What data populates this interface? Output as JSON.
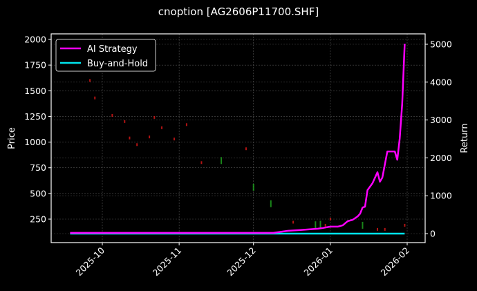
{
  "chart_data": {
    "type": "line",
    "title": "cnoption [AG2606P11700.SHF]",
    "xlabel": "",
    "ylabel": "Price",
    "y2label": "Return",
    "x_ticks": [
      "2025-10",
      "2025-11",
      "2025-12",
      "2026-01",
      "2026-02"
    ],
    "y_ticks": [
      250,
      500,
      750,
      1000,
      1250,
      1500,
      1750,
      2000
    ],
    "y2_ticks": [
      0,
      1000,
      2000,
      3000,
      4000,
      5000
    ],
    "ylim": [
      22,
      2035
    ],
    "y2lim": [
      -240,
      5240
    ],
    "grid": true,
    "legend": {
      "position": "upper left",
      "entries": [
        {
          "label": "AI Strategy",
          "color": "#ff00ff"
        },
        {
          "label": "Buy-and-Hold",
          "color": "#00e5ee"
        }
      ]
    },
    "series": [
      {
        "name": "AI Strategy",
        "axis": "right",
        "color": "#ff00ff",
        "x": [
          "2025-09-18",
          "2025-12-09",
          "2025-12-15",
          "2025-12-20",
          "2025-12-27",
          "2025-12-29",
          "2026-01-01",
          "2026-01-04",
          "2026-01-06",
          "2026-01-08",
          "2026-01-10",
          "2026-01-12",
          "2026-01-13",
          "2026-01-14",
          "2026-01-15",
          "2026-01-16",
          "2026-01-18",
          "2026-01-20",
          "2026-01-21",
          "2026-01-22",
          "2026-01-24",
          "2026-01-26",
          "2026-01-27",
          "2026-01-28",
          "2026-01-29",
          "2026-01-30",
          "2026-01-31"
        ],
        "values": [
          20,
          20,
          75,
          95,
          130,
          150,
          185,
          185,
          220,
          330,
          365,
          455,
          525,
          690,
          710,
          1150,
          1330,
          1620,
          1370,
          1480,
          2170,
          2170,
          2170,
          1950,
          2510,
          3430,
          5010
        ]
      },
      {
        "name": "Buy-and-Hold",
        "axis": "right",
        "color": "#00e5ee",
        "x": [
          "2025-09-18",
          "2026-01-31"
        ],
        "values": [
          0,
          0
        ]
      }
    ],
    "candles_note": "faint OHLC candlesticks on left axis (Price), declining from ~1600 in late Sep 2025 to ~150-250 by Jan 2026",
    "candles": [
      {
        "x": "2025-09-26",
        "price": 1600,
        "color": "red"
      },
      {
        "x": "2025-09-28",
        "price": 1430,
        "color": "red"
      },
      {
        "x": "2025-10-05",
        "price": 1260,
        "color": "red"
      },
      {
        "x": "2025-10-10",
        "price": 1200,
        "color": "red"
      },
      {
        "x": "2025-10-12",
        "price": 1040,
        "color": "red"
      },
      {
        "x": "2025-10-15",
        "price": 975,
        "color": "red"
      },
      {
        "x": "2025-10-20",
        "price": 1050,
        "color": "red"
      },
      {
        "x": "2025-10-22",
        "price": 1240,
        "color": "red"
      },
      {
        "x": "2025-10-25",
        "price": 1140,
        "color": "red"
      },
      {
        "x": "2025-10-30",
        "price": 1030,
        "color": "red"
      },
      {
        "x": "2025-11-04",
        "price": 1170,
        "color": "red"
      },
      {
        "x": "2025-11-10",
        "price": 800,
        "color": "red"
      },
      {
        "x": "2025-11-18",
        "price": 820,
        "color": "green"
      },
      {
        "x": "2025-11-28",
        "price": 935,
        "color": "red"
      },
      {
        "x": "2025-12-01",
        "price": 560,
        "color": "green"
      },
      {
        "x": "2025-12-08",
        "price": 400,
        "color": "green"
      },
      {
        "x": "2025-12-17",
        "price": 220,
        "color": "red"
      },
      {
        "x": "2025-12-26",
        "price": 195,
        "color": "green"
      },
      {
        "x": "2025-12-28",
        "price": 200,
        "color": "green"
      },
      {
        "x": "2025-12-30",
        "price": 190,
        "color": "red"
      },
      {
        "x": "2026-01-01",
        "price": 250,
        "color": "red"
      },
      {
        "x": "2026-01-14",
        "price": 190,
        "color": "green"
      },
      {
        "x": "2026-01-20",
        "price": 150,
        "color": "red"
      },
      {
        "x": "2026-01-23",
        "price": 150,
        "color": "red"
      },
      {
        "x": "2026-01-31",
        "price": 190,
        "color": "red"
      }
    ]
  },
  "labels": {
    "title": "cnoption [AG2606P11700.SHF]",
    "ylabel": "Price",
    "y2label": "Return",
    "legend_ai": "AI Strategy",
    "legend_bh": "Buy-and-Hold"
  }
}
